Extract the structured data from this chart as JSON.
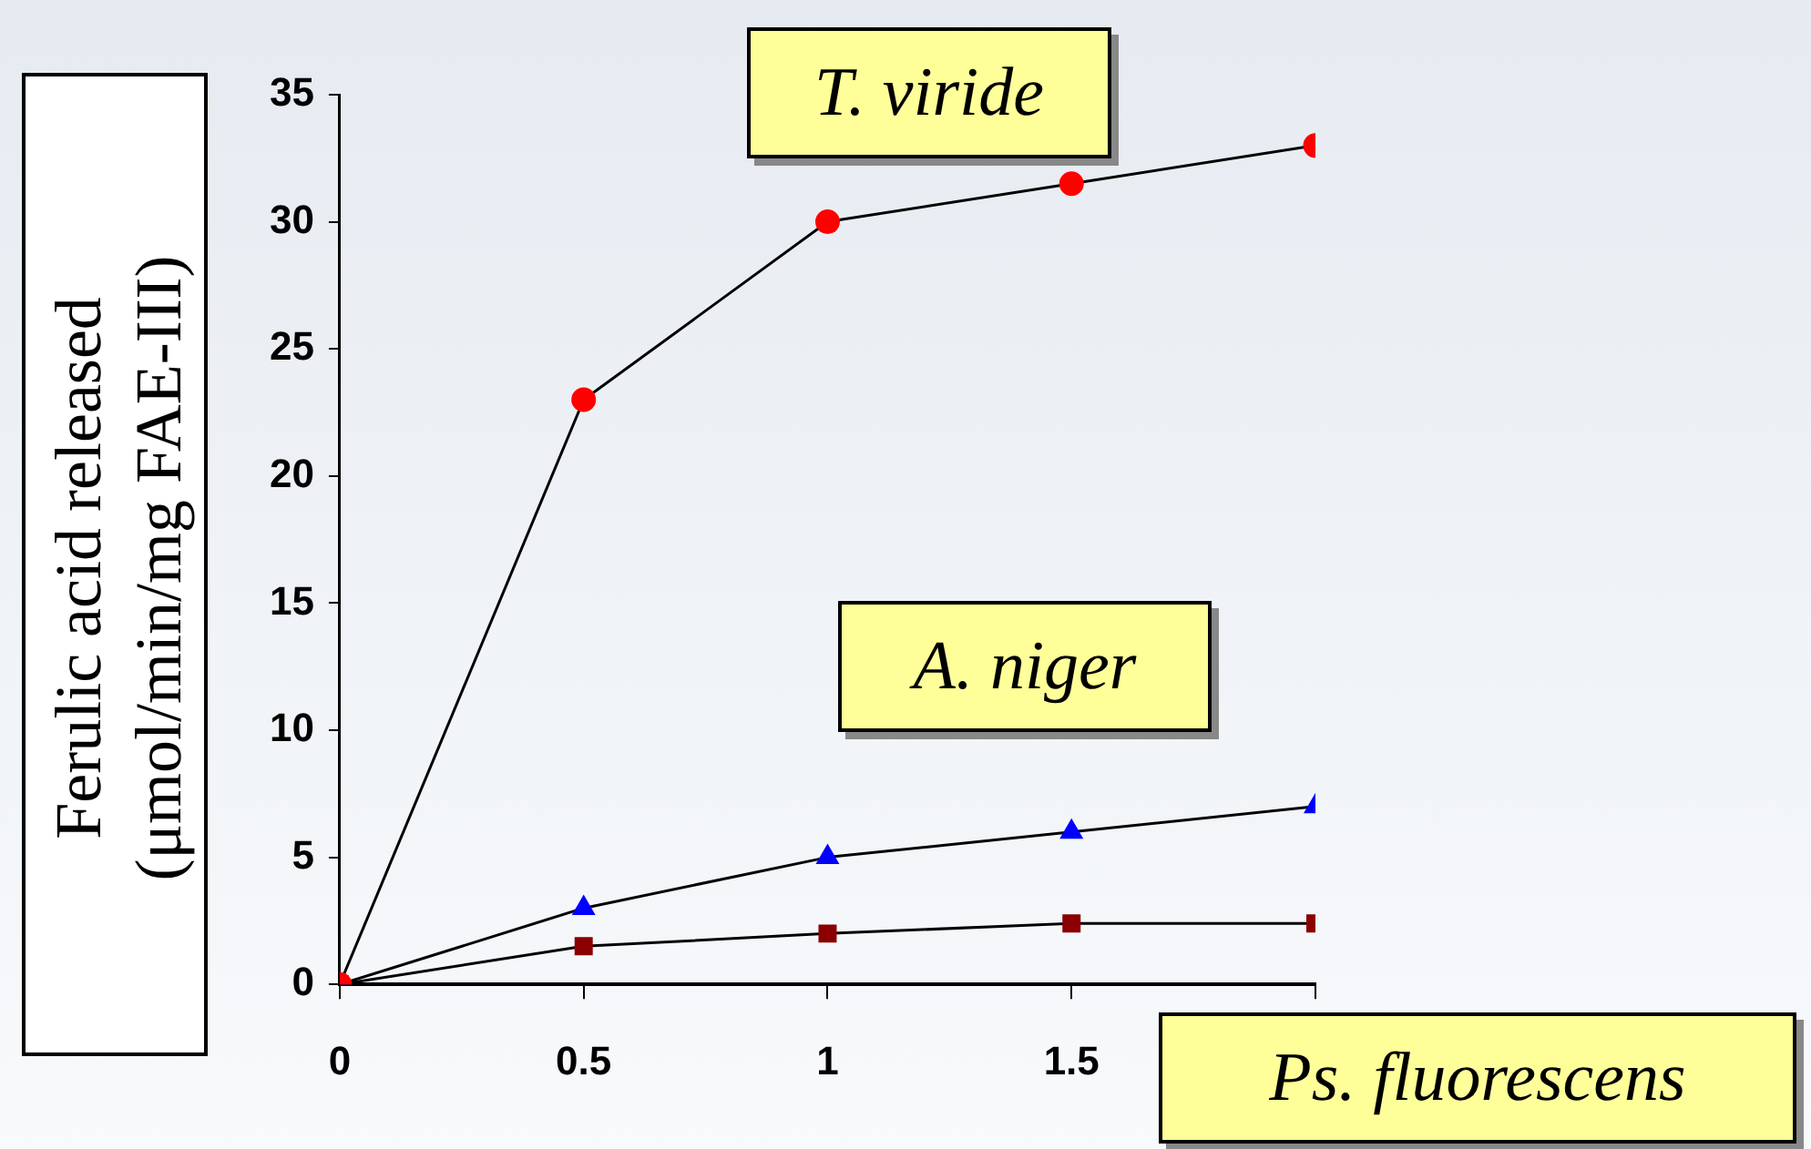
{
  "chart_data": {
    "type": "line",
    "ylabel": "Ferulic acid released (μmol/min/mg FAE-III)",
    "x": [
      0,
      0.5,
      1,
      1.5,
      2
    ],
    "series": [
      {
        "name": "T. viride",
        "color": "#ff0000",
        "marker": "circle",
        "values": [
          0,
          23,
          30,
          31.5,
          33
        ]
      },
      {
        "name": "A. niger",
        "color": "#0000ff",
        "marker": "triangle",
        "values": [
          0,
          3,
          5,
          6,
          7
        ]
      },
      {
        "name": "Ps. fluorescens",
        "color": "#8b0000",
        "marker": "square",
        "values": [
          0,
          1.5,
          2,
          2.4,
          2.4
        ]
      }
    ],
    "xlim": [
      0,
      2
    ],
    "xticks": [
      0,
      0.5,
      1,
      1.5,
      {
        "value": 2,
        "label": null
      }
    ],
    "ylim": [
      0,
      35
    ],
    "yticks": [
      0,
      5,
      10,
      15,
      20,
      25,
      30,
      35
    ],
    "grid": false,
    "legend": false
  }
}
